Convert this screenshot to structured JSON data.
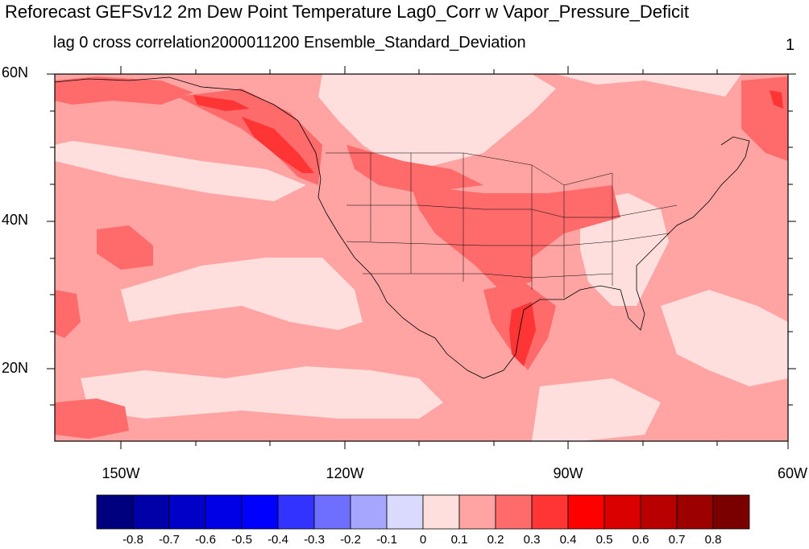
{
  "title": "Reforecast GEFSv12 2m Dew Point Temperature Lag0_Corr w Vapor_Pressure_Deficit",
  "subtitle": "lag 0 cross correlation2000011200 Ensemble_Standard_Deviation",
  "corner_label": "1",
  "map": {
    "lat_labels": [
      "60N",
      "40N",
      "20N"
    ],
    "lon_labels": [
      "150W",
      "120W",
      "90W",
      "60W"
    ],
    "lat_range": [
      10,
      60
    ],
    "lon_range": [
      -160,
      -60
    ]
  },
  "colorbar": {
    "ticks": [
      "-0.8",
      "-0.7",
      "-0.6",
      "-0.5",
      "-0.4",
      "-0.3",
      "-0.2",
      "-0.1",
      "0",
      "0.1",
      "0.2",
      "0.3",
      "0.4",
      "0.5",
      "0.6",
      "0.7",
      "0.8"
    ],
    "colors": [
      "#00007f",
      "#0000a8",
      "#0000c8",
      "#0000e6",
      "#0000ff",
      "#3333ff",
      "#6e6eff",
      "#a6a6ff",
      "#dadaff",
      "#ffdede",
      "#ffa3a3",
      "#ff6a6a",
      "#ff3535",
      "#ff0000",
      "#db0000",
      "#b80000",
      "#9c0000",
      "#7a0000"
    ]
  }
}
